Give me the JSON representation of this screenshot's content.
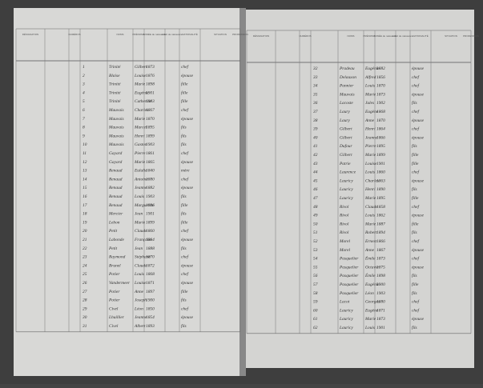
{
  "pages": [
    {
      "headers": [
        "DÉSIGNATION",
        "NUMÉROS",
        "NOMS",
        "PRÉNOMS",
        "ANNÉE de naissance",
        "LIEU de naissance",
        "NATIONALITÉ",
        "SITUATION",
        "PROFESSION"
      ],
      "rows": [
        [
          "1",
          "Trinité",
          "Gilbert",
          "1873",
          "chef"
        ],
        [
          "2",
          "Blaise",
          "Louise",
          "1876",
          "épouse"
        ],
        [
          "3",
          "Trinité",
          "Marie",
          "1898",
          "fille"
        ],
        [
          "4",
          "Trinité",
          "Eugénie",
          "1901",
          "fille"
        ],
        [
          "5",
          "Trinité",
          "Catherine",
          "1903",
          "fille"
        ],
        [
          "6",
          "Mauvais",
          "Charles",
          "1867",
          "chef"
        ],
        [
          "7",
          "Mauvais",
          "Marie",
          "1870",
          "épouse"
        ],
        [
          "8",
          "Mauvais",
          "Marcel",
          "1895",
          "fils"
        ],
        [
          "9",
          "Mauvais",
          "Henri",
          "1899",
          "fils"
        ],
        [
          "10",
          "Mauvais",
          "Gaston",
          "1903",
          "fils"
        ],
        [
          "11",
          "Gayard",
          "Pierre",
          "1861",
          "chef"
        ],
        [
          "12",
          "Gayard",
          "Marie",
          "1865",
          "épouse"
        ],
        [
          "13",
          "Renaud",
          "Eulalie",
          "1840",
          "mère"
        ],
        [
          "14",
          "Renaud",
          "Antoine",
          "1880",
          "chef"
        ],
        [
          "15",
          "Renaud",
          "Jeanne",
          "1882",
          "épouse"
        ],
        [
          "16",
          "Renaud",
          "Louis",
          "1903",
          "fils"
        ],
        [
          "17",
          "Renaud",
          "Marguerite",
          "1906",
          "fille"
        ],
        [
          "18",
          "Mercier",
          "Jean",
          "1901",
          "fils"
        ],
        [
          "19",
          "Lebon",
          "Marie",
          "1899",
          "fille"
        ],
        [
          "20",
          "Petit",
          "Claude",
          "1860",
          "chef"
        ],
        [
          "21",
          "Labonde",
          "Françoise",
          "1864",
          "épouse"
        ],
        [
          "22",
          "Petit",
          "Jean",
          "1888",
          "fils"
        ],
        [
          "23",
          "Raymond",
          "Stéphane",
          "1870",
          "chef"
        ],
        [
          "24",
          "Brunel",
          "Claude",
          "1872",
          "épouse"
        ],
        [
          "25",
          "Potier",
          "Louis",
          "1868",
          "chef"
        ],
        [
          "26",
          "Vandermeer",
          "Louise",
          "1871",
          "épouse"
        ],
        [
          "27",
          "Potier",
          "Anne",
          "1897",
          "fille"
        ],
        [
          "28",
          "Potier",
          "Joseph",
          "1900",
          "fils"
        ],
        [
          "29",
          "Civel",
          "Léon",
          "1850",
          "chef"
        ],
        [
          "30",
          "Lhuillier",
          "Jeanne",
          "1854",
          "épouse"
        ],
        [
          "31",
          "Civel",
          "Albert",
          "1893",
          "fils"
        ]
      ]
    },
    {
      "headers": [
        "DÉSIGNATION",
        "NUMÉROS",
        "NOMS",
        "PRÉNOMS",
        "ANNÉE de naissance",
        "LIEU de naissance",
        "NATIONALITÉ",
        "SITUATION",
        "PROFESSION"
      ],
      "rows": [
        [
          "32",
          "Pradeau",
          "Eugénie",
          "1882",
          "épouse"
        ],
        [
          "33",
          "Delauxon",
          "Alfred",
          "1856",
          "chef"
        ],
        [
          "34",
          "Pannier",
          "Louis",
          "1870",
          "chef"
        ],
        [
          "35",
          "Mauvais",
          "Marie",
          "1873",
          "épouse"
        ],
        [
          "36",
          "Lacoste",
          "Jules",
          "1902",
          "fils"
        ],
        [
          "37",
          "Laury",
          "Eugène",
          "1868",
          "chef"
        ],
        [
          "38",
          "Laury",
          "Anne",
          "1870",
          "épouse"
        ],
        [
          "39",
          "Gilbert",
          "Henri",
          "1864",
          "chef"
        ],
        [
          "40",
          "Gilbert",
          "Jeanne",
          "1866",
          "épouse"
        ],
        [
          "41",
          "Dufour",
          "Pierre",
          "1895",
          "fils"
        ],
        [
          "42",
          "Gilbert",
          "Marie",
          "1899",
          "fille"
        ],
        [
          "43",
          "Patrie",
          "Louise",
          "1901",
          "fille"
        ],
        [
          "44",
          "Laurence",
          "Louis",
          "1860",
          "chef"
        ],
        [
          "45",
          "Lauricy",
          "Charles",
          "1863",
          "épouse"
        ],
        [
          "46",
          "Lauricy",
          "Henri",
          "1890",
          "fils"
        ],
        [
          "47",
          "Lauricy",
          "Marie",
          "1895",
          "fille"
        ],
        [
          "48",
          "Rivol",
          "Claude",
          "1858",
          "chef"
        ],
        [
          "49",
          "Rivol",
          "Louis",
          "1862",
          "épouse"
        ],
        [
          "50",
          "Rivol",
          "Marie",
          "1887",
          "fille"
        ],
        [
          "51",
          "Rivol",
          "Robert",
          "1894",
          "fils"
        ],
        [
          "52",
          "Morel",
          "Ernest",
          "1866",
          "chef"
        ],
        [
          "53",
          "Morel",
          "Anne",
          "1867",
          "épouse"
        ],
        [
          "54",
          "Pasquelier",
          "Émile",
          "1873",
          "chef"
        ],
        [
          "55",
          "Pasquelier",
          "Octavie",
          "1875",
          "épouse"
        ],
        [
          "56",
          "Pasquelier",
          "Émile",
          "1898",
          "fils"
        ],
        [
          "57",
          "Pasquelier",
          "Eugénie",
          "1900",
          "fille"
        ],
        [
          "58",
          "Pasquelier",
          "Léon",
          "1903",
          "fils"
        ],
        [
          "59",
          "Lacot",
          "Georges",
          "1880",
          "chef"
        ],
        [
          "60",
          "Lauricy",
          "Eugène",
          "1871",
          "chef"
        ],
        [
          "61",
          "Lauricy",
          "Marie",
          "1873",
          "épouse"
        ],
        [
          "62",
          "Lauricy",
          "Louis",
          "1901",
          "fils"
        ]
      ]
    }
  ]
}
